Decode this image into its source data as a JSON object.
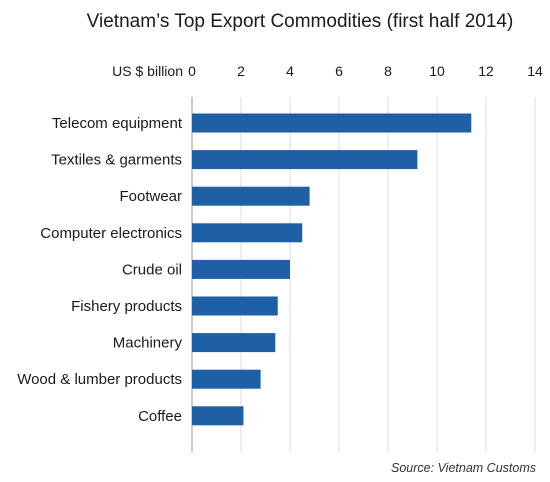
{
  "chart_data": {
    "type": "bar",
    "orientation": "horizontal",
    "title": "Vietnam’s Top Export Commodities (first half 2014)",
    "unit_label": "US $ billion",
    "source": "Source: Vietnam Customs",
    "categories": [
      "Telecom equipment",
      "Textiles & garments",
      "Footwear",
      "Computer electronics",
      "Crude oil",
      "Fishery products",
      "Machinery",
      "Wood & lumber products",
      "Coffee"
    ],
    "values": [
      11.4,
      9.2,
      4.8,
      4.5,
      4.0,
      3.5,
      3.4,
      2.8,
      2.1
    ],
    "xlim": [
      0,
      14
    ],
    "xticks": [
      0,
      2,
      4,
      6,
      8,
      10,
      12,
      14
    ],
    "grid": true,
    "axis_position": "top",
    "bar_color": "#1f5fa6"
  }
}
